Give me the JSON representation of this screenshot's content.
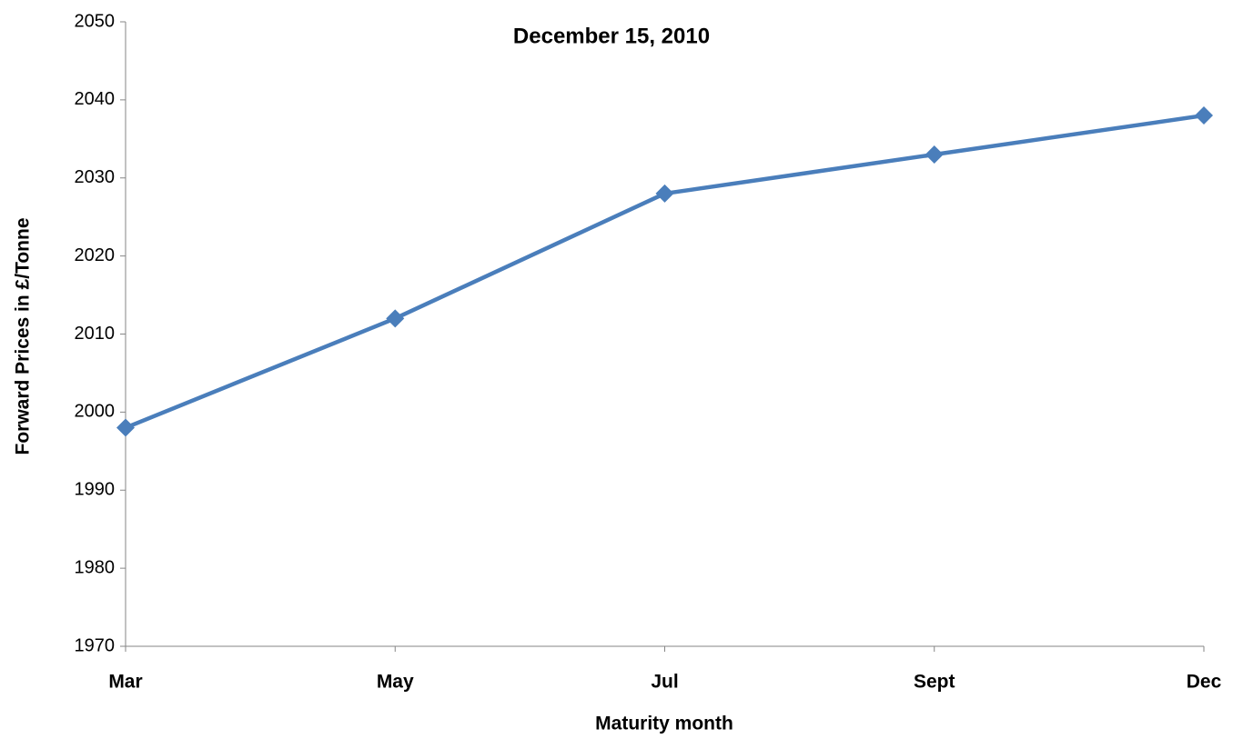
{
  "chart_data": {
    "type": "line",
    "title": "December 15, 2010",
    "x_label": "Maturity month",
    "y_label": "Forward Prices in £/Tonne",
    "categories": [
      "Mar",
      "May",
      "Jul",
      "Sept",
      "Dec"
    ],
    "series": [
      {
        "name": "Forward Prices",
        "color": "#4a7ebb",
        "values": [
          1998,
          2012,
          2028,
          2033,
          2038
        ]
      }
    ],
    "ylim": [
      1970,
      2050
    ],
    "yticks": [
      1970,
      1980,
      1990,
      2000,
      2010,
      2020,
      2030,
      2040,
      2050
    ],
    "grid": false
  }
}
